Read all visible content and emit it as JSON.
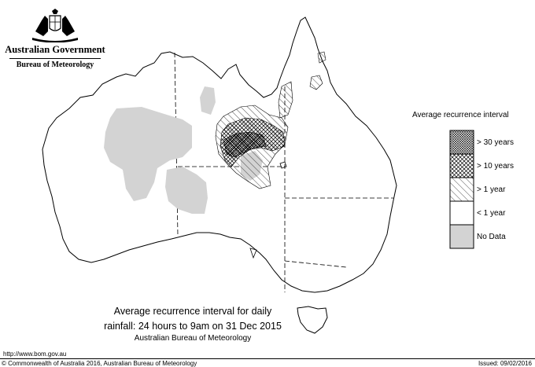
{
  "header": {
    "government": "Australian Government",
    "department": "Bureau of Meteorology"
  },
  "caption": {
    "line1": "Average recurrence interval for daily",
    "line2": "rainfall: 24 hours to 9am on 31 Dec 2015",
    "line3": "Australian Bureau of Meteorology"
  },
  "legend": {
    "title": "Average recurrence interval",
    "items": [
      {
        "label": "> 30 years",
        "pattern": "dense-crosshatch"
      },
      {
        "label": "> 10 years",
        "pattern": "crosshatch"
      },
      {
        "label": "> 1 year",
        "pattern": "diagonal-hatch"
      },
      {
        "label": "< 1 year",
        "pattern": "blank"
      },
      {
        "label": "No Data",
        "pattern": "grey-fill",
        "color": "#d3d3d3"
      }
    ]
  },
  "footer": {
    "url": "http://www.bom.gov.au",
    "copyright": "© Commonwealth of Australia 2016, Australian Bureau of Meteorology",
    "issued": "Issued: 09/02/2016"
  },
  "colors": {
    "nodata": "#d3d3d3",
    "outline": "#000000"
  }
}
